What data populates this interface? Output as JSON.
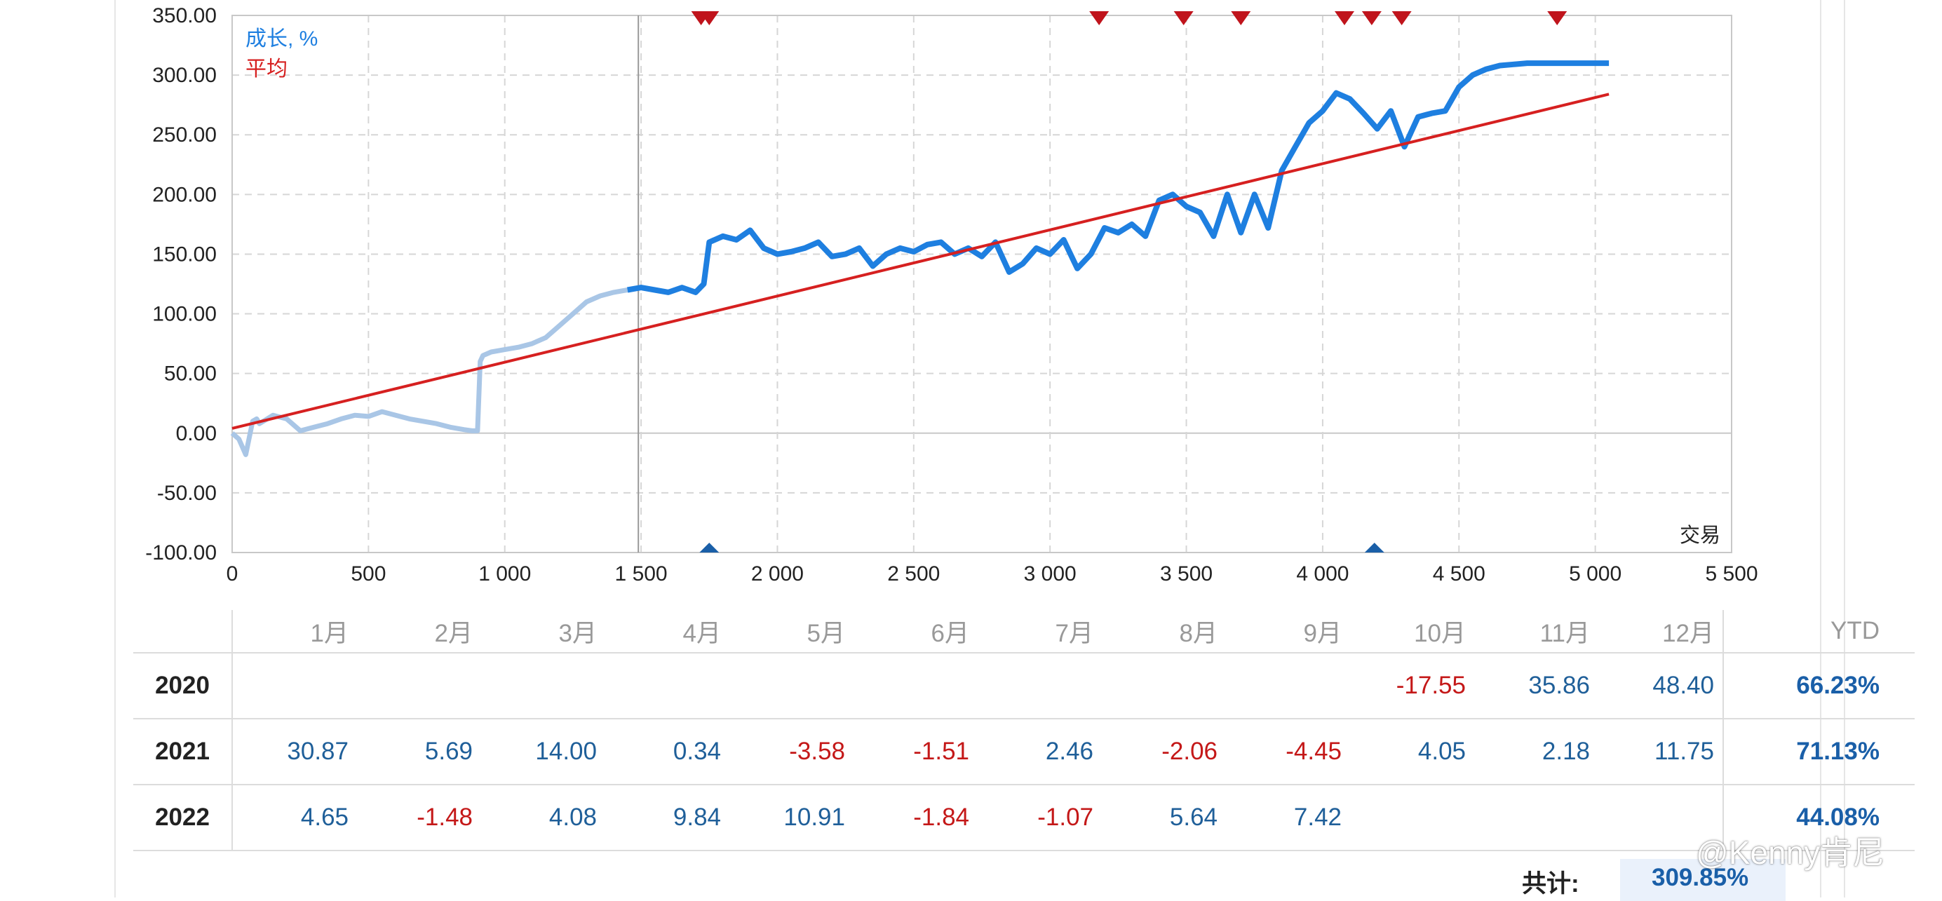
{
  "chart_data": {
    "type": "line",
    "x": [
      0,
      25,
      50,
      75,
      90,
      100,
      150,
      200,
      250,
      300,
      350,
      400,
      450,
      500,
      550,
      600,
      650,
      700,
      750,
      800,
      850,
      880,
      900,
      910,
      920,
      950,
      1000,
      1050,
      1100,
      1150,
      1200,
      1250,
      1300,
      1350,
      1400,
      1450,
      1500,
      1550,
      1600,
      1650,
      1700,
      1730,
      1750,
      1800,
      1850,
      1900,
      1950,
      2000,
      2050,
      2100,
      2150,
      2200,
      2250,
      2300,
      2350,
      2400,
      2450,
      2500,
      2550,
      2600,
      2650,
      2700,
      2750,
      2800,
      2850,
      2900,
      2950,
      3000,
      3050,
      3100,
      3150,
      3200,
      3250,
      3300,
      3350,
      3400,
      3450,
      3500,
      3550,
      3600,
      3650,
      3700,
      3750,
      3800,
      3850,
      3900,
      3950,
      4000,
      4050,
      4100,
      4150,
      4200,
      4250,
      4300,
      4350,
      4400,
      4450,
      4500,
      4550,
      4600,
      4650,
      4700,
      4750,
      4800,
      4850,
      4900,
      4950,
      5000,
      5050
    ],
    "series": [
      {
        "name": "成长, %",
        "color": "#1e7fe0",
        "faded_color": "#a9c6e6",
        "highlight_from_x": 1480,
        "values": [
          0,
          -5,
          -18,
          10,
          12,
          8,
          15,
          12,
          2,
          5,
          8,
          12,
          15,
          14,
          18,
          15,
          12,
          10,
          8,
          5,
          3,
          2,
          2,
          60,
          65,
          68,
          70,
          72,
          75,
          80,
          90,
          100,
          110,
          115,
          118,
          120,
          122,
          120,
          118,
          122,
          118,
          125,
          160,
          165,
          162,
          170,
          155,
          150,
          152,
          155,
          160,
          148,
          150,
          155,
          140,
          150,
          155,
          152,
          158,
          160,
          150,
          155,
          148,
          160,
          135,
          142,
          155,
          150,
          162,
          138,
          150,
          172,
          168,
          175,
          165,
          195,
          200,
          190,
          185,
          165,
          200,
          168,
          200,
          172,
          220,
          240,
          260,
          270,
          285,
          280,
          268,
          255,
          270,
          240,
          265,
          268,
          270,
          290,
          300,
          305,
          308,
          309,
          310,
          310,
          310,
          310,
          310,
          310,
          310
        ]
      },
      {
        "name": "平均",
        "color": "#d62020",
        "trend": {
          "x": [
            0,
            5050
          ],
          "y": [
            4,
            284
          ]
        }
      }
    ],
    "xlim": [
      0,
      5500
    ],
    "ylim": [
      -100,
      350
    ],
    "x_ticks": [
      "0",
      "500",
      "1 000",
      "1 500",
      "2 000",
      "2 500",
      "3 000",
      "3 500",
      "4 000",
      "4 500",
      "5 000",
      "5 500"
    ],
    "y_ticks": [
      "350.00",
      "300.00",
      "250.00",
      "200.00",
      "150.00",
      "100.00",
      "50.00",
      "0.00",
      "-50.00",
      "-100.00"
    ],
    "xlabel": "交易",
    "ylabel": "",
    "grid": true,
    "legend_position": "top-left",
    "cursor_x": 1490,
    "markers_top_x": [
      1720,
      1750,
      3180,
      3490,
      3700,
      4080,
      4180,
      4290,
      4860
    ],
    "markers_bottom_x": [
      1750,
      4190
    ]
  },
  "table": {
    "months": [
      "1月",
      "2月",
      "3月",
      "4月",
      "5月",
      "6月",
      "7月",
      "8月",
      "9月",
      "10月",
      "11月",
      "12月"
    ],
    "ytd_label": "YTD",
    "rows": [
      {
        "year": "2020",
        "values": [
          "",
          "",
          "",
          "",
          "",
          "",
          "",
          "",
          "",
          "-17.55",
          "35.86",
          "48.40"
        ],
        "ytd": "66.23%"
      },
      {
        "year": "2021",
        "values": [
          "30.87",
          "5.69",
          "14.00",
          "0.34",
          "-3.58",
          "-1.51",
          "2.46",
          "-2.06",
          "-4.45",
          "4.05",
          "2.18",
          "11.75"
        ],
        "ytd": "71.13%"
      },
      {
        "year": "2022",
        "values": [
          "4.65",
          "-1.48",
          "4.08",
          "9.84",
          "10.91",
          "-1.84",
          "-1.07",
          "5.64",
          "7.42",
          "",
          "",
          ""
        ],
        "ytd": "44.08%"
      }
    ],
    "total_label": "共计:",
    "total_value": "309.85%"
  },
  "watermark": "@Kenny肯尼",
  "colors": {
    "accent": "#1e7fe0",
    "trend": "#d62020",
    "positive": "#1f5f99",
    "negative": "#c41818"
  }
}
